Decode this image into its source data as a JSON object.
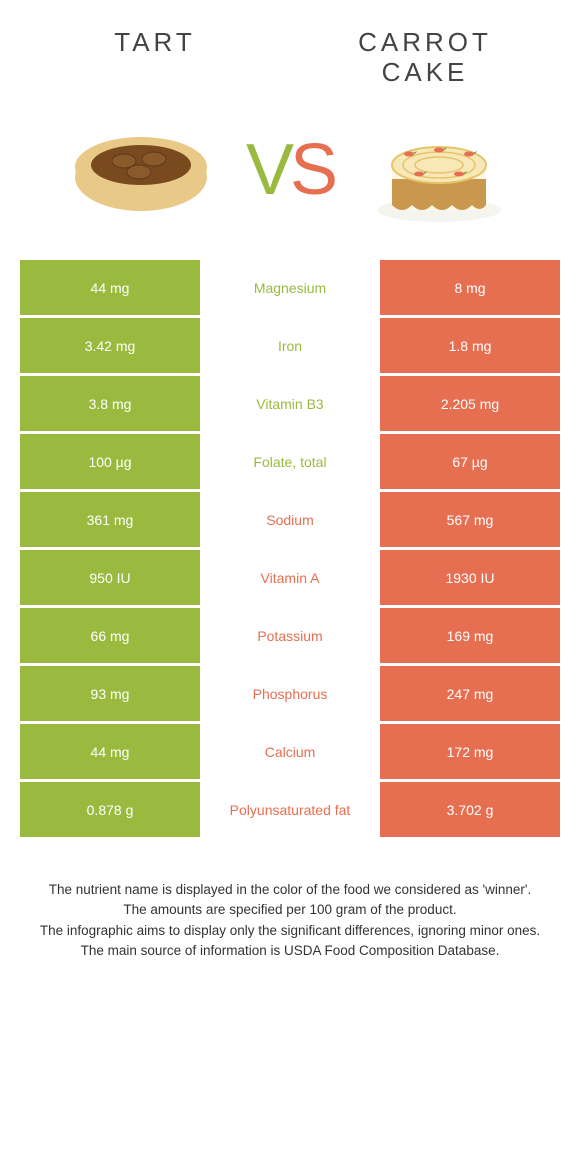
{
  "header": {
    "left_title": "Tart",
    "right_title": "Carrot\ncake"
  },
  "vs": {
    "v": "V",
    "s": "S"
  },
  "colors": {
    "left": "#9aba3f",
    "right": "#e76f51",
    "mid_bg": "#ffffff",
    "text_dark": "#444444"
  },
  "rows": [
    {
      "nutrient": "Magnesium",
      "left": "44 mg",
      "right": "8 mg",
      "winner": "left"
    },
    {
      "nutrient": "Iron",
      "left": "3.42 mg",
      "right": "1.8 mg",
      "winner": "left"
    },
    {
      "nutrient": "Vitamin B3",
      "left": "3.8 mg",
      "right": "2.205 mg",
      "winner": "left"
    },
    {
      "nutrient": "Folate, total",
      "left": "100 µg",
      "right": "67 µg",
      "winner": "left"
    },
    {
      "nutrient": "Sodium",
      "left": "361 mg",
      "right": "567 mg",
      "winner": "right"
    },
    {
      "nutrient": "Vitamin A",
      "left": "950 IU",
      "right": "1930 IU",
      "winner": "right"
    },
    {
      "nutrient": "Potassium",
      "left": "66 mg",
      "right": "169 mg",
      "winner": "right"
    },
    {
      "nutrient": "Phosphorus",
      "left": "93 mg",
      "right": "247 mg",
      "winner": "right"
    },
    {
      "nutrient": "Calcium",
      "left": "44 mg",
      "right": "172 mg",
      "winner": "right"
    },
    {
      "nutrient": "Polyunsaturated fat",
      "left": "0.878 g",
      "right": "3.702 g",
      "winner": "right"
    }
  ],
  "footnote": {
    "l1": "The nutrient name is displayed in the color of the food we considered as 'winner'.",
    "l2": "The amounts are specified per 100 gram of the product.",
    "l3": "The infographic aims to display only the significant differences, ignoring minor ones.",
    "l4": "The main source of information is USDA Food Composition Database."
  }
}
